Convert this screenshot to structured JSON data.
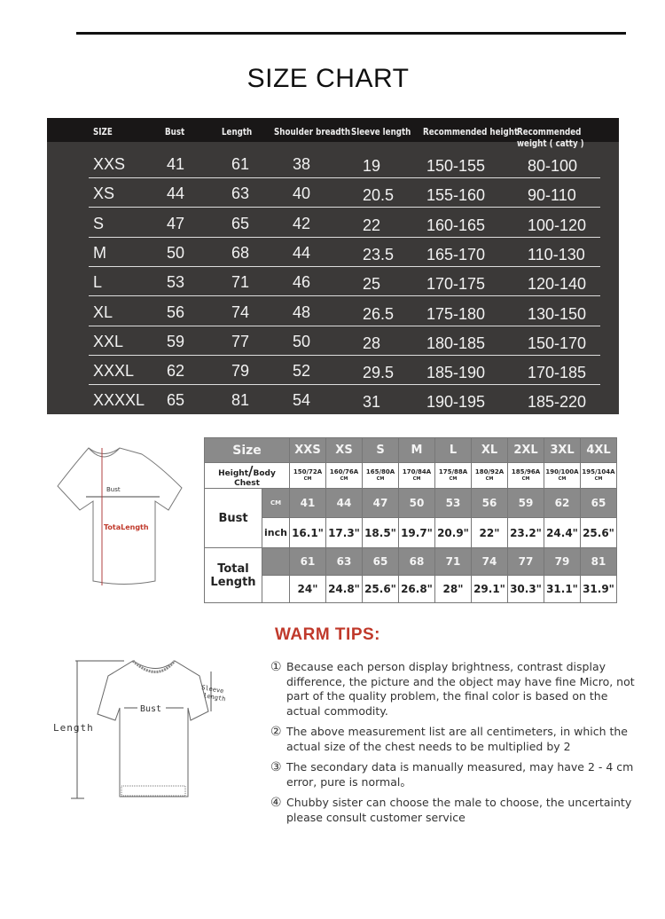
{
  "title": "SIZE CHART",
  "main_table": {
    "headers": [
      "SIZE",
      "Bust",
      "Length",
      "Shoulder breadth",
      "Sleeve length",
      "Recommended height",
      "Recommended weight ( catty )"
    ],
    "rows": [
      [
        "XXS",
        "41",
        "61",
        "38",
        "19",
        "150-155",
        "80-100"
      ],
      [
        "XS",
        "44",
        "63",
        "40",
        "20.5",
        "155-160",
        "90-110"
      ],
      [
        "S",
        "47",
        "65",
        "42",
        "22",
        "160-165",
        "100-120"
      ],
      [
        "M",
        "50",
        "68",
        "44",
        "23.5",
        "165-170",
        "110-130"
      ],
      [
        "L",
        "53",
        "71",
        "46",
        "25",
        "170-175",
        "120-140"
      ],
      [
        "XL",
        "56",
        "74",
        "48",
        "26.5",
        "175-180",
        "130-150"
      ],
      [
        "XXL",
        "59",
        "77",
        "50",
        "28",
        "180-185",
        "150-170"
      ],
      [
        "XXXL",
        "62",
        "79",
        "52",
        "29.5",
        "185-190",
        "170-185"
      ],
      [
        "XXXXL",
        "65",
        "81",
        "54",
        "31",
        "190-195",
        "185-220"
      ]
    ]
  },
  "diagram1": {
    "bust": "Bust",
    "length": "TotaLength"
  },
  "size_table": {
    "size_label": "Size",
    "sizes": [
      "XXS",
      "XS",
      "S",
      "M",
      "L",
      "XL",
      "2XL",
      "3XL",
      "4XL"
    ],
    "hb_label_a": "Height",
    "hb_label_b": "Body Chest",
    "hb": [
      "150/72A",
      "160/76A",
      "165/80A",
      "170/84A",
      "175/88A",
      "180/92A",
      "185/96A",
      "190/100A",
      "195/104A"
    ],
    "hb_unit": "CM",
    "bust_label": "Bust",
    "cm": "CM",
    "inch": "inch",
    "bust_cm": [
      "41",
      "44",
      "47",
      "50",
      "53",
      "56",
      "59",
      "62",
      "65"
    ],
    "bust_in": [
      "16.1\"",
      "17.3\"",
      "18.5\"",
      "19.7\"",
      "20.9\"",
      "22\"",
      "23.2\"",
      "24.4\"",
      "25.6\""
    ],
    "length_label": "Total Length",
    "length_cm": [
      "61",
      "63",
      "65",
      "68",
      "71",
      "74",
      "77",
      "79",
      "81"
    ],
    "length_in": [
      "24\"",
      "24.8\"",
      "25.6\"",
      "26.8\"",
      "28\"",
      "29.1\"",
      "30.3\"",
      "31.1\"",
      "31.9\""
    ]
  },
  "diagram2": {
    "length": "Length",
    "bust": "Bust",
    "sleeve_a": "Sleeve",
    "sleeve_b": "length"
  },
  "warm_tips": {
    "title": "WARM TIPS:",
    "items": [
      {
        "n": "①",
        "text": "Because each person display brightness, contrast display difference, the picture and the object may have fine Micro, not part of the quality problem, the final color is based on the actual commodity."
      },
      {
        "n": "②",
        "text": "The above measurement list are all centimeters, in which the actual size of the chest needs to be multiplied by 2"
      },
      {
        "n": "③",
        "text": "The secondary data is manually measured, may have 2 - 4 cm error, pure is normal。"
      },
      {
        "n": "④",
        "text": "Chubby sister can choose the male to choose, the uncertainty please consult customer service"
      }
    ]
  },
  "colors": {
    "header_bg": "#191717",
    "table_bg": "#3b3938",
    "gray_row": "#8a8a8a",
    "warm_red": "#c0392b"
  }
}
